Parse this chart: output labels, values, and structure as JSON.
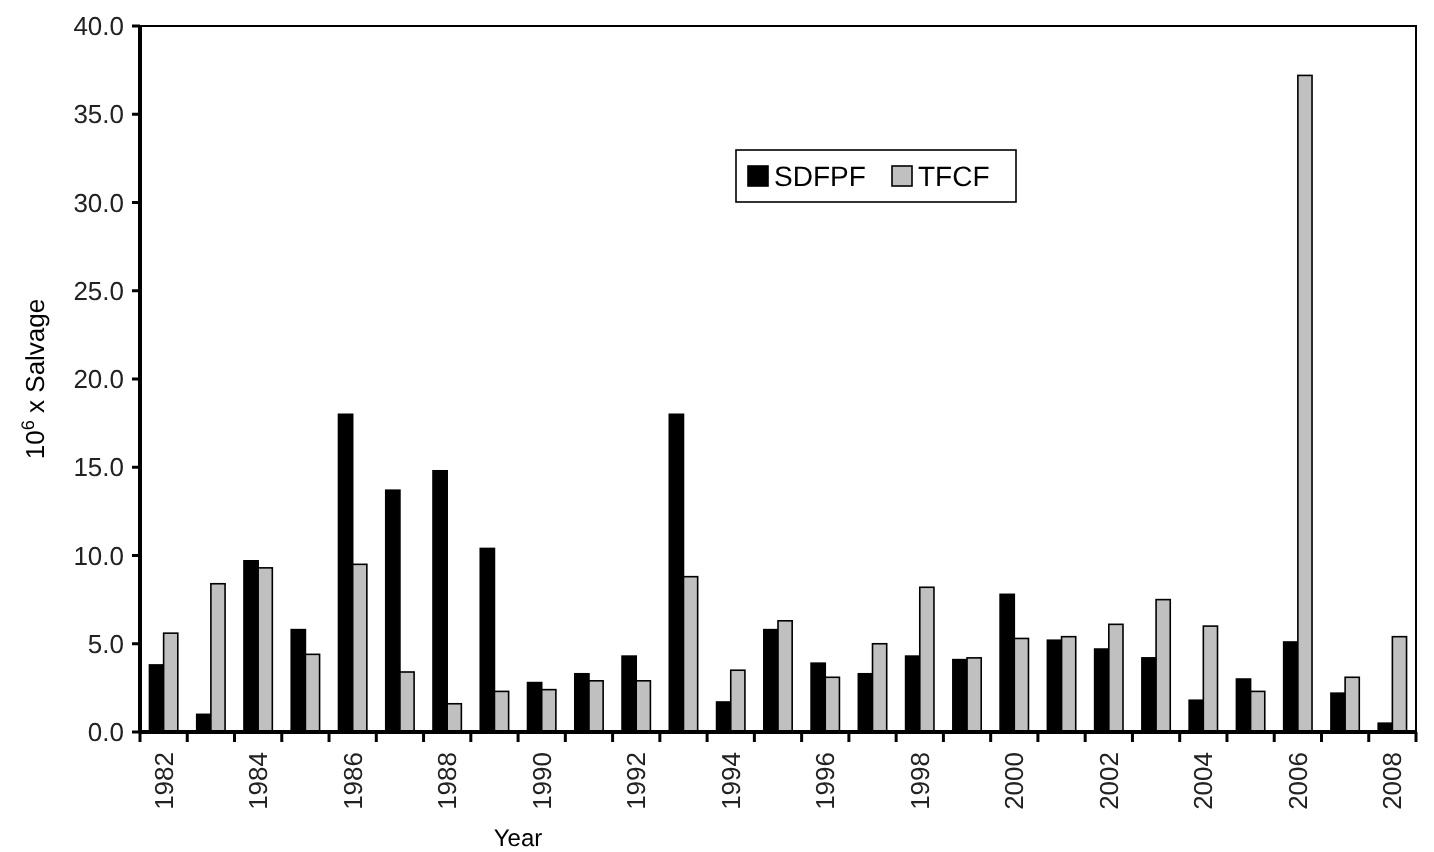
{
  "chart_data": {
    "type": "bar",
    "xlabel": "Year",
    "ylabel": "10$^{6}$ x Salvage",
    "categories": [
      "1982",
      null,
      "1984",
      null,
      "1986",
      null,
      "1988",
      null,
      "1990",
      null,
      "1992",
      null,
      "1994",
      null,
      "1996",
      null,
      "1998",
      null,
      "2000",
      null,
      "2002",
      null,
      "2004",
      null,
      "2006",
      null,
      "2008"
    ],
    "series": [
      {
        "name": "SDFPF",
        "color": "#000000",
        "values": [
          3.8,
          1.0,
          9.7,
          5.8,
          18.0,
          13.7,
          14.8,
          10.4,
          2.8,
          3.3,
          4.3,
          18.0,
          1.7,
          5.8,
          3.9,
          3.3,
          4.3,
          4.1,
          7.8,
          5.2,
          4.7,
          4.2,
          1.8,
          3.0,
          5.1,
          2.2,
          0.5
        ]
      },
      {
        "name": "TFCF",
        "color": "#c0c0c0",
        "values": [
          5.6,
          8.4,
          9.3,
          4.4,
          9.5,
          3.4,
          1.6,
          2.3,
          2.4,
          2.9,
          2.9,
          8.8,
          3.5,
          6.3,
          3.1,
          5.0,
          8.2,
          4.2,
          5.3,
          5.4,
          6.1,
          7.5,
          6.0,
          2.3,
          37.2,
          3.1,
          5.4
        ]
      }
    ],
    "ylim": [
      0,
      40
    ],
    "yticks": [
      {
        "value": 0,
        "label": "0.0"
      },
      {
        "value": 5,
        "label": "5.0"
      },
      {
        "value": 10,
        "label": "10.0"
      },
      {
        "value": 15,
        "label": "15.0"
      },
      {
        "value": 20,
        "label": "20.0"
      },
      {
        "value": 25,
        "label": "25.0"
      },
      {
        "value": 30,
        "label": "30.0"
      },
      {
        "value": 35,
        "label": "35.0"
      },
      {
        "value": 40,
        "label": "40.0"
      }
    ],
    "grid": false,
    "legend": "top right"
  }
}
